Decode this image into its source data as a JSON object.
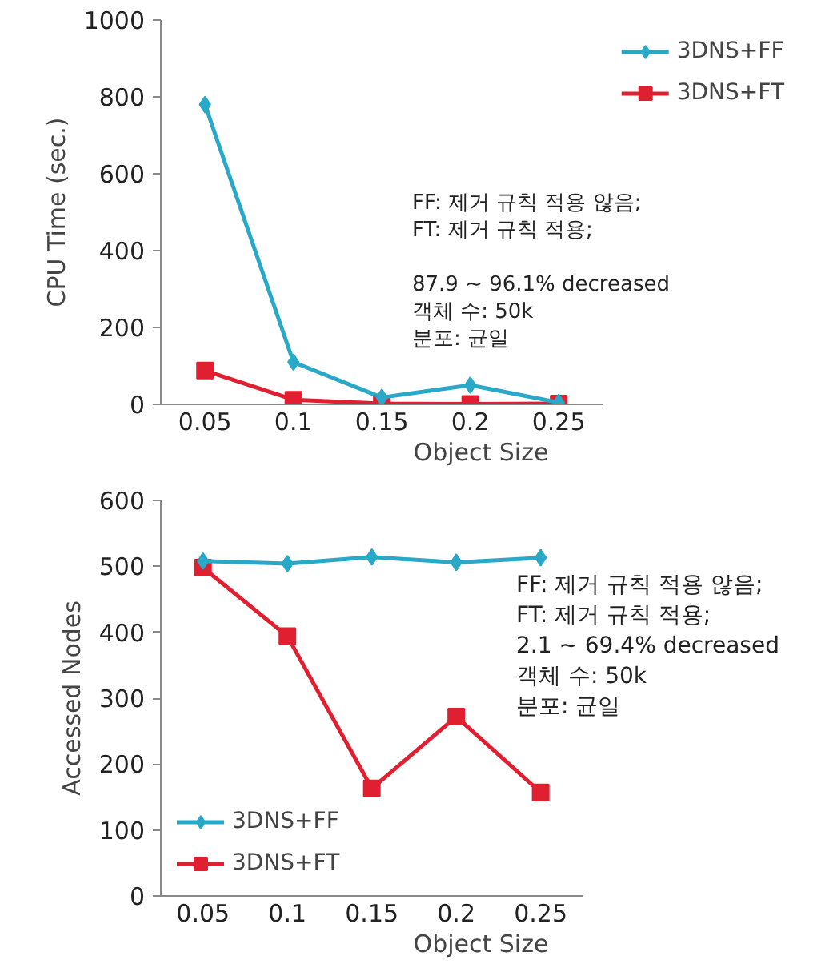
{
  "chart_data": [
    {
      "type": "line",
      "xlabel": "Object Size",
      "ylabel": "CPU Time (sec.)",
      "categories": [
        "0.05",
        "0.1",
        "0.15",
        "0.2",
        "0.25"
      ],
      "ylim": [
        0,
        1000
      ],
      "yticks": [
        0,
        200,
        400,
        600,
        800,
        1000
      ],
      "grid": false,
      "legend": "top right",
      "series": [
        {
          "name": "3DNS+FF",
          "color": "#2aa8c8",
          "marker": "diamond",
          "values": [
            780,
            110,
            18,
            50,
            5
          ]
        },
        {
          "name": "3DNS+FT",
          "color": "#e02030",
          "marker": "square",
          "values": [
            88,
            12,
            2,
            1,
            2
          ]
        }
      ],
      "annotations": [
        "FF: 제거 규칙 적용 않음;",
        "FT: 제거 규칙 적용;",
        "87.9 ~ 96.1% decreased",
        "객체 수: 50k",
        "분포: 균일"
      ]
    },
    {
      "type": "line",
      "xlabel": "Object Size",
      "ylabel": "Accessed Nodes",
      "categories": [
        "0.05",
        "0.1",
        "0.15",
        "0.2",
        "0.25"
      ],
      "ylim": [
        0,
        600
      ],
      "yticks": [
        0,
        100,
        200,
        300,
        400,
        500,
        600
      ],
      "grid": false,
      "legend": "bottom left",
      "series": [
        {
          "name": "3DNS+FF",
          "color": "#2aa8c8",
          "marker": "diamond",
          "values": [
            508,
            504,
            514,
            506,
            513
          ]
        },
        {
          "name": "3DNS+FT",
          "color": "#e02030",
          "marker": "square",
          "values": [
            498,
            394,
            163,
            272,
            157
          ]
        }
      ],
      "annotations": [
        "FF: 제거 규칙 적용 않음;",
        "FT: 제거 규칙 적용;",
        "2.1 ~ 69.4% decreased",
        "객체 수: 50k",
        "분포: 균일"
      ]
    }
  ]
}
